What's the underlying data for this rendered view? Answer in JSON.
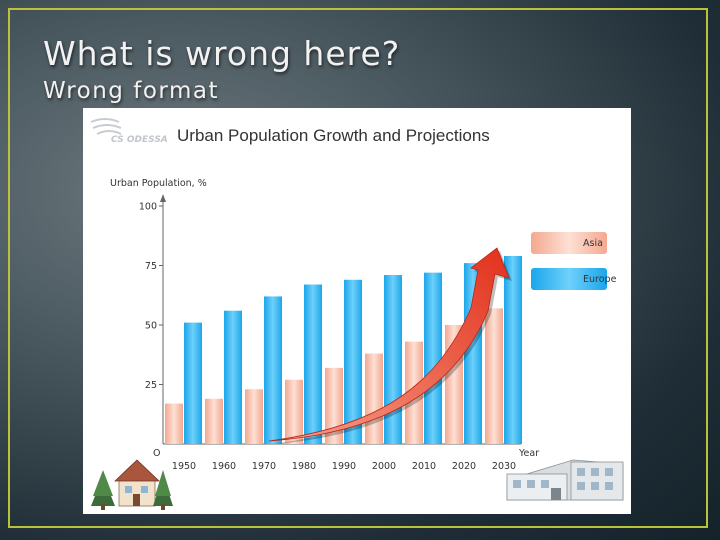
{
  "slide": {
    "title": "What is wrong here?",
    "subtitle": "Wrong format"
  },
  "logo": {
    "text": "CS ODESSA"
  },
  "colors": {
    "asia": "#f6b8a5",
    "europe": "#2eb2ef",
    "arrow": "#e8432e",
    "frame": "#b9c23a"
  },
  "icons": [
    "building-icon",
    "house-icon",
    "tree-icon",
    "trend-arrow-icon"
  ],
  "chart_data": {
    "type": "bar",
    "title": "Urban Population Growth and Projections",
    "ylabel": "Urban Population, %",
    "xlabel": "Year",
    "origin_label": "O",
    "ylim": [
      0,
      100
    ],
    "yticks": [
      25,
      50,
      75,
      100
    ],
    "categories": [
      "1950",
      "1960",
      "1970",
      "1980",
      "1990",
      "2000",
      "2010",
      "2020",
      "2030"
    ],
    "series": [
      {
        "name": "Asia",
        "values": [
          17,
          19,
          23,
          27,
          32,
          38,
          43,
          50,
          57
        ]
      },
      {
        "name": "Europe",
        "values": [
          51,
          56,
          62,
          67,
          69,
          71,
          72,
          76,
          79
        ]
      }
    ],
    "legend_position": "right",
    "grid": false
  }
}
